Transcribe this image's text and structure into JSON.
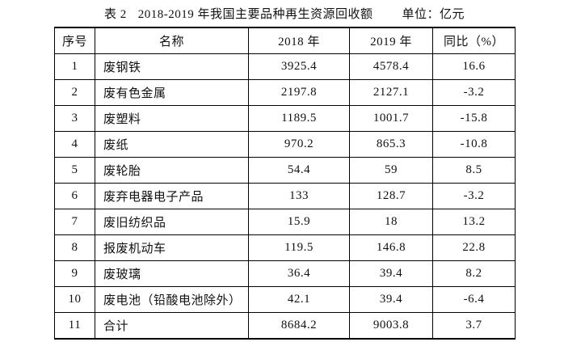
{
  "caption": {
    "table_label": "表 2",
    "title": "2018-2019 年我国主要品种再生资源回收额",
    "unit": "单位：亿元"
  },
  "table": {
    "headers": [
      "序号",
      "名称",
      "2018 年",
      "2019 年",
      "同比（%）"
    ],
    "rows": [
      {
        "no": "1",
        "name": "废钢铁",
        "v2018": "3925.4",
        "v2019": "4578.4",
        "yoy": "16.6"
      },
      {
        "no": "2",
        "name": "废有色金属",
        "v2018": "2197.8",
        "v2019": "2127.1",
        "yoy": "-3.2"
      },
      {
        "no": "3",
        "name": "废塑料",
        "v2018": "1189.5",
        "v2019": "1001.7",
        "yoy": "-15.8"
      },
      {
        "no": "4",
        "name": "废纸",
        "v2018": "970.2",
        "v2019": "865.3",
        "yoy": "-10.8"
      },
      {
        "no": "5",
        "name": "废轮胎",
        "v2018": "54.4",
        "v2019": "59",
        "yoy": "8.5"
      },
      {
        "no": "6",
        "name": "废弃电器电子产品",
        "v2018": "133",
        "v2019": "128.7",
        "yoy": "-3.2"
      },
      {
        "no": "7",
        "name": "废旧纺织品",
        "v2018": "15.9",
        "v2019": "18",
        "yoy": "13.2"
      },
      {
        "no": "8",
        "name": "报废机动车",
        "v2018": "119.5",
        "v2019": "146.8",
        "yoy": "22.8"
      },
      {
        "no": "9",
        "name": "废玻璃",
        "v2018": "36.4",
        "v2019": "39.4",
        "yoy": "8.2"
      },
      {
        "no": "10",
        "name": "废电池（铅酸电池除外）",
        "v2018": "42.1",
        "v2019": "39.4",
        "yoy": "-6.4"
      },
      {
        "no": "11",
        "name": "合计",
        "v2018": "8684.2",
        "v2019": "9003.8",
        "yoy": "3.7"
      }
    ]
  }
}
